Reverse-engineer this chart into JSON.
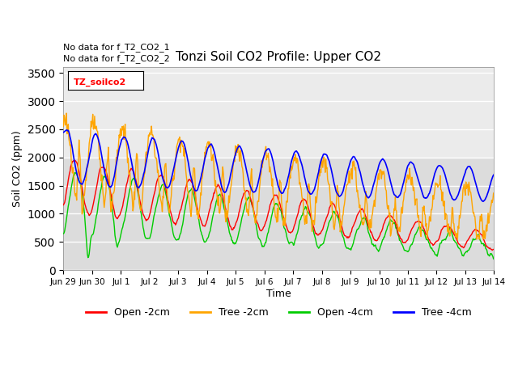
{
  "title": "Tonzi Soil CO2 Profile: Upper CO2",
  "ylabel": "Soil CO2 (ppm)",
  "xlabel": "Time",
  "annotations": [
    "No data for f_T2_CO2_1",
    "No data for f_T2_CO2_2"
  ],
  "legend_label": "TZ_soilco2",
  "legend_entries": [
    "Open -2cm",
    "Tree -2cm",
    "Open -4cm",
    "Tree -4cm"
  ],
  "legend_colors": [
    "#ff0000",
    "#ffa500",
    "#00cc00",
    "#0000ff"
  ],
  "ylim": [
    0,
    3600
  ],
  "yticks": [
    0,
    500,
    1000,
    1500,
    2000,
    2500,
    3000,
    3500
  ],
  "background_color": "#ffffff",
  "plot_bg_color": "#dcdcdc",
  "shaded_above": 2000,
  "shaded_color": "#ebebeb",
  "n_days": 15
}
